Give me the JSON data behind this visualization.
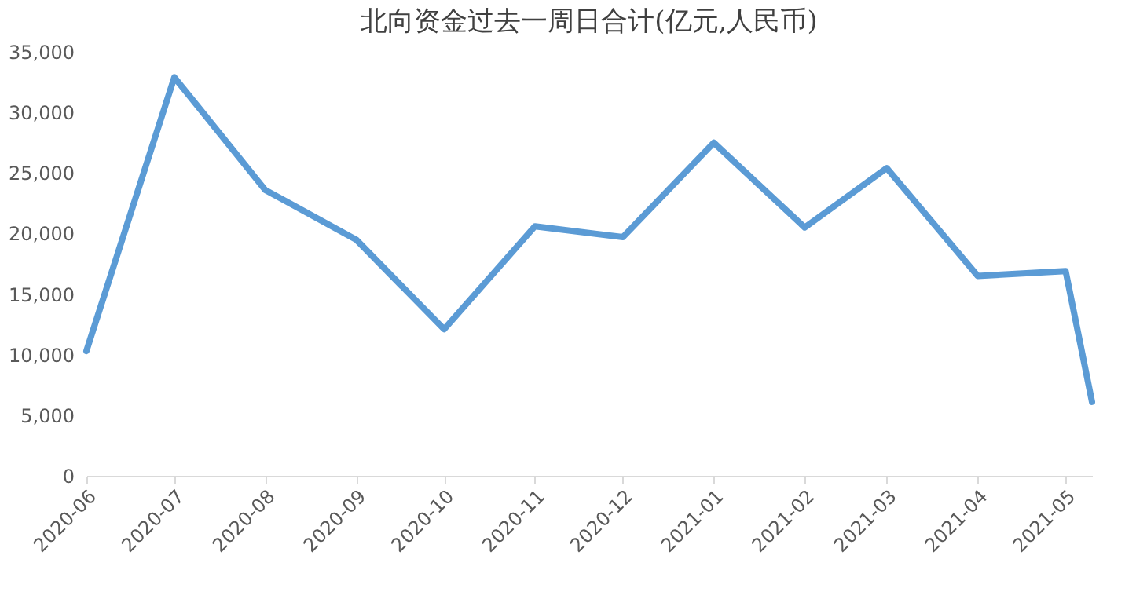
{
  "chart_data": {
    "type": "line",
    "title": "北向资金过去一周日合计(亿元,人民币)",
    "x": [
      "2020-06-01",
      "2020-07-01",
      "2020-08-01",
      "2020-09-01",
      "2020-10-01",
      "2020-11-01",
      "2020-12-01",
      "2021-01-01",
      "2021-02-01",
      "2021-03-01",
      "2021-04-01",
      "2021-05-01",
      "2021-05-10"
    ],
    "series": [
      {
        "color": "#5b9bd5",
        "values": [
          10300,
          32900,
          23600,
          19500,
          12100,
          20600,
          19700,
          27500,
          20500,
          25400,
          16500,
          16900,
          6100
        ]
      }
    ],
    "xlim": [
      "2020-06-01",
      "2021-05-10"
    ],
    "xticks": [
      {
        "value": "2020-06-01",
        "label": "2020-06"
      },
      {
        "value": "2020-07-01",
        "label": "2020-07"
      },
      {
        "value": "2020-08-01",
        "label": "2020-08"
      },
      {
        "value": "2020-09-01",
        "label": "2020-09"
      },
      {
        "value": "2020-10-01",
        "label": "2020-10"
      },
      {
        "value": "2020-11-01",
        "label": "2020-11"
      },
      {
        "value": "2020-12-01",
        "label": "2020-12"
      },
      {
        "value": "2021-01-01",
        "label": "2021-01"
      },
      {
        "value": "2021-02-01",
        "label": "2021-02"
      },
      {
        "value": "2021-03-01",
        "label": "2021-03"
      },
      {
        "value": "2021-04-01",
        "label": "2021-04"
      },
      {
        "value": "2021-05-01",
        "label": "2021-05"
      }
    ],
    "ylim": [
      0,
      35000
    ],
    "yticks": [
      0,
      {
        "value": 5000,
        "label": "5,000"
      },
      {
        "value": 10000,
        "label": "10,000"
      },
      {
        "value": 15000,
        "label": "15,000"
      },
      {
        "value": 20000,
        "label": "20,000"
      },
      {
        "value": 25000,
        "label": "25,000"
      },
      {
        "value": 30000,
        "label": "30,000"
      },
      {
        "value": 35000,
        "label": "35,000"
      }
    ],
    "grid": false,
    "marker": "none",
    "line_style": "solid"
  }
}
